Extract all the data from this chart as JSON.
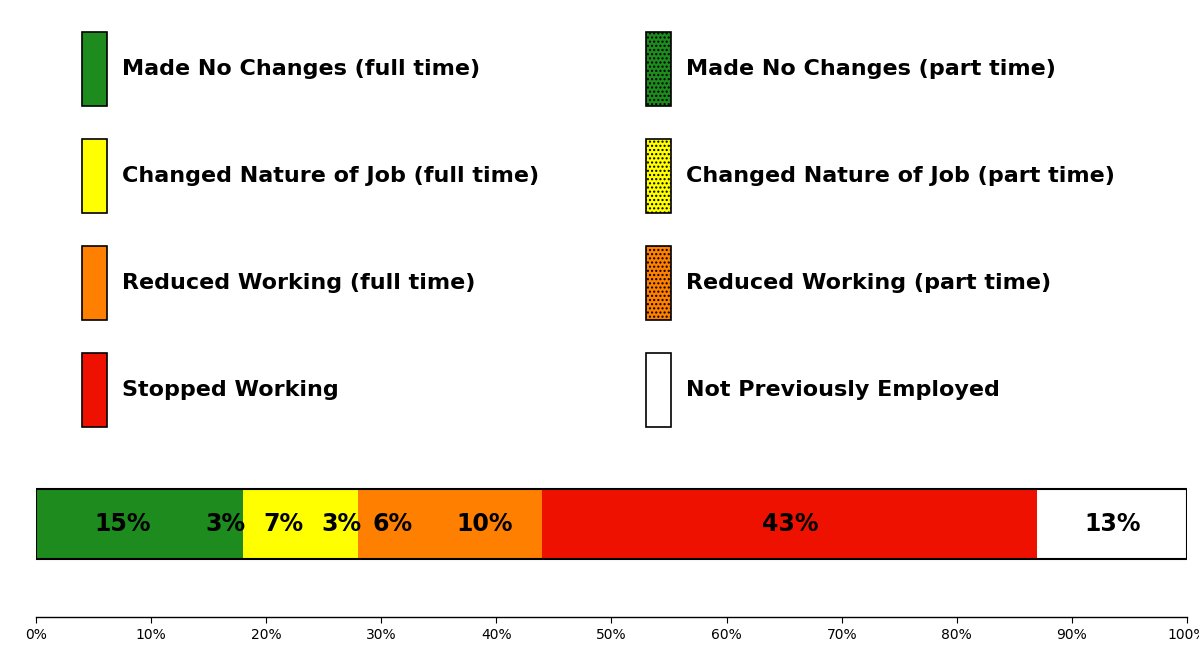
{
  "segments": [
    {
      "label": "Made No Changes (full time)",
      "value": 15,
      "color": "#1E8B1E",
      "hatch": null,
      "text_color": "#000000"
    },
    {
      "label": "Made No Changes (part time)",
      "value": 3,
      "color": "#1E8B1E",
      "hatch": "....",
      "text_color": "#000000"
    },
    {
      "label": "Changed Nature of Job (full time)",
      "value": 7,
      "color": "#FFFF00",
      "hatch": null,
      "text_color": "#000000"
    },
    {
      "label": "Changed Nature of Job (part time)",
      "value": 3,
      "color": "#FFFF00",
      "hatch": "....",
      "text_color": "#000000"
    },
    {
      "label": "Reduced Working (full time)",
      "value": 6,
      "color": "#FF8000",
      "hatch": null,
      "text_color": "#000000"
    },
    {
      "label": "Reduced Working (part time)",
      "value": 10,
      "color": "#FF8000",
      "hatch": "....",
      "text_color": "#000000"
    },
    {
      "label": "Stopped Working",
      "value": 43,
      "color": "#EE1100",
      "hatch": null,
      "text_color": "#000000"
    },
    {
      "label": "Not Previously Employed",
      "value": 13,
      "color": "#FFFFFF",
      "hatch": null,
      "text_color": "#000000"
    }
  ],
  "legend_items": [
    {
      "label": "Made No Changes (full time)",
      "color": "#1E8B1E",
      "hatch": null
    },
    {
      "label": "Made No Changes (part time)",
      "color": "#1E8B1E",
      "hatch": "...."
    },
    {
      "label": "Changed Nature of Job (full time)",
      "color": "#FFFF00",
      "hatch": null
    },
    {
      "label": "Changed Nature of Job (part time)",
      "color": "#FFFF00",
      "hatch": "...."
    },
    {
      "label": "Reduced Working (full time)",
      "color": "#FF8000",
      "hatch": null
    },
    {
      "label": "Reduced Working (part time)",
      "color": "#FF8000",
      "hatch": "...."
    },
    {
      "label": "Stopped Working",
      "color": "#EE1100",
      "hatch": null
    },
    {
      "label": "Not Previously Employed",
      "color": "#FFFFFF",
      "hatch": null
    }
  ],
  "xlim": [
    0,
    100
  ],
  "xticks": [
    0,
    10,
    20,
    30,
    40,
    50,
    60,
    70,
    80,
    90,
    100
  ],
  "background_color": "#FFFFFF",
  "pct_fontsize": 17,
  "legend_fontsize": 16,
  "tick_fontsize": 14
}
